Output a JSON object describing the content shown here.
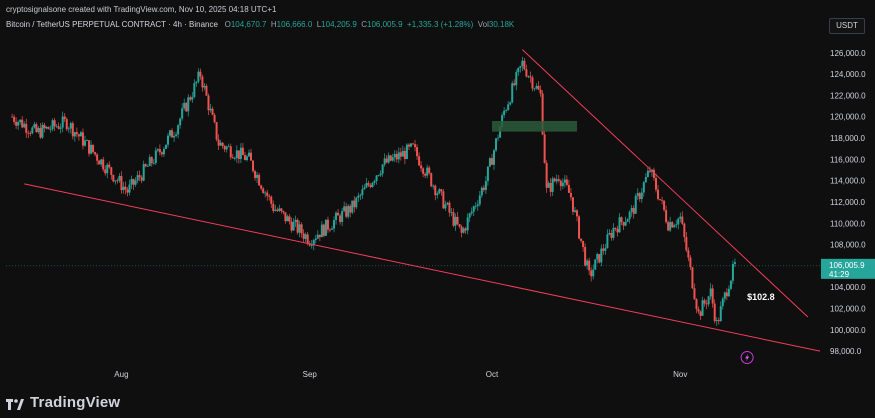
{
  "header": {
    "attribution": "cryptosignalsone created with TradingView.com, Nov 10, 2025 04:18 UTC+1",
    "symbol": "Bitcoin / TetherUS PERPETUAL CONTRACT · 4h · Binance",
    "open_label": "O",
    "open": "104,670.7",
    "high_label": "H",
    "high": "106,666.0",
    "low_label": "L",
    "low": "104,205.9",
    "close_label": "C",
    "close": "106,005.9",
    "change": "+1,335.3 (+1.28%)",
    "volume_label": "Vol",
    "volume": "30.18K"
  },
  "currency_button": "USDT",
  "colors": {
    "up": "#26a69a",
    "down": "#ef5350",
    "trendline": "#f23d5c",
    "zone": "#2a5a3a",
    "price_label_bg": "#26a69a",
    "background": "#0f0f0f"
  },
  "chart_data": {
    "type": "candlestick",
    "timeframe": "4h",
    "ylim": [
      96700,
      127200
    ],
    "y_ticks": [
      {
        "value": 126000,
        "label": "126,000.0"
      },
      {
        "value": 124000,
        "label": "124,000.0"
      },
      {
        "value": 122000,
        "label": "122,000.0"
      },
      {
        "value": 120000,
        "label": "120,000.0"
      },
      {
        "value": 118000,
        "label": "118,000.0"
      },
      {
        "value": 116000,
        "label": "116,000.0"
      },
      {
        "value": 114000,
        "label": "114,000.0"
      },
      {
        "value": 112000,
        "label": "112,000.0"
      },
      {
        "value": 110000,
        "label": "110,000.0"
      },
      {
        "value": 108000,
        "label": "108,000.0"
      },
      {
        "value": 104000,
        "label": "104,000.0"
      },
      {
        "value": 102000,
        "label": "102,000.0"
      },
      {
        "value": 100000,
        "label": "100,000.0"
      },
      {
        "value": 98000,
        "label": "98,000.0"
      }
    ],
    "x_ticks": [
      "Aug",
      "Sep",
      "Oct",
      "Nov"
    ],
    "price_path": [
      {
        "date": "2025-07-14",
        "price": 120000
      },
      {
        "date": "2025-07-18",
        "price": 118500
      },
      {
        "date": "2025-07-23",
        "price": 119500
      },
      {
        "date": "2025-08-02",
        "price": 113000
      },
      {
        "date": "2025-08-07",
        "price": 116500
      },
      {
        "date": "2025-08-10",
        "price": 119000
      },
      {
        "date": "2025-08-14",
        "price": 124000
      },
      {
        "date": "2025-08-17",
        "price": 117500
      },
      {
        "date": "2025-08-22",
        "price": 116000
      },
      {
        "date": "2025-08-26",
        "price": 111500
      },
      {
        "date": "2025-09-01",
        "price": 108500
      },
      {
        "date": "2025-09-08",
        "price": 111500
      },
      {
        "date": "2025-09-13",
        "price": 115500
      },
      {
        "date": "2025-09-18",
        "price": 117000
      },
      {
        "date": "2025-09-22",
        "price": 113000
      },
      {
        "date": "2025-09-26",
        "price": 109000
      },
      {
        "date": "2025-09-30",
        "price": 114000
      },
      {
        "date": "2025-10-03",
        "price": 120500
      },
      {
        "date": "2025-10-06",
        "price": 125000
      },
      {
        "date": "2025-10-09",
        "price": 122000
      },
      {
        "date": "2025-10-10",
        "price": 113000
      },
      {
        "date": "2025-10-12",
        "price": 114500
      },
      {
        "date": "2025-10-14",
        "price": 112500
      },
      {
        "date": "2025-10-17",
        "price": 105000
      },
      {
        "date": "2025-10-21",
        "price": 109500
      },
      {
        "date": "2025-10-24",
        "price": 111000
      },
      {
        "date": "2025-10-27",
        "price": 115000
      },
      {
        "date": "2025-10-30",
        "price": 110000
      },
      {
        "date": "2025-11-01",
        "price": 110500
      },
      {
        "date": "2025-11-04",
        "price": 101500
      },
      {
        "date": "2025-11-06",
        "price": 103500
      },
      {
        "date": "2025-11-07",
        "price": 100500
      },
      {
        "date": "2025-11-09",
        "price": 104500
      },
      {
        "date": "2025-11-10",
        "price": 106005.9
      }
    ],
    "current_price": {
      "label": "106,005.9",
      "sub": "41:29",
      "value": 106005.9
    },
    "annotations": [
      {
        "type": "trendline",
        "name": "upper-resistance",
        "from": {
          "date": "2025-10-06",
          "price": 126300
        },
        "to": {
          "date": "2025-11-22",
          "price": 101200
        }
      },
      {
        "type": "trendline",
        "name": "lower-support",
        "from": {
          "date": "2025-07-16",
          "price": 113700
        },
        "to": {
          "date": "2025-11-24",
          "price": 98000
        }
      },
      {
        "type": "zone",
        "name": "demand-zone",
        "from_date": "2025-10-01",
        "to_date": "2025-10-15",
        "top": 119600,
        "bottom": 118600
      },
      {
        "type": "text",
        "text": "$102.8",
        "date": "2025-11-12",
        "price": 102800
      }
    ],
    "grid": false,
    "x_axis_range": [
      "2025-07-13",
      "2025-11-24"
    ]
  },
  "footer": {
    "brand": "TradingView"
  }
}
